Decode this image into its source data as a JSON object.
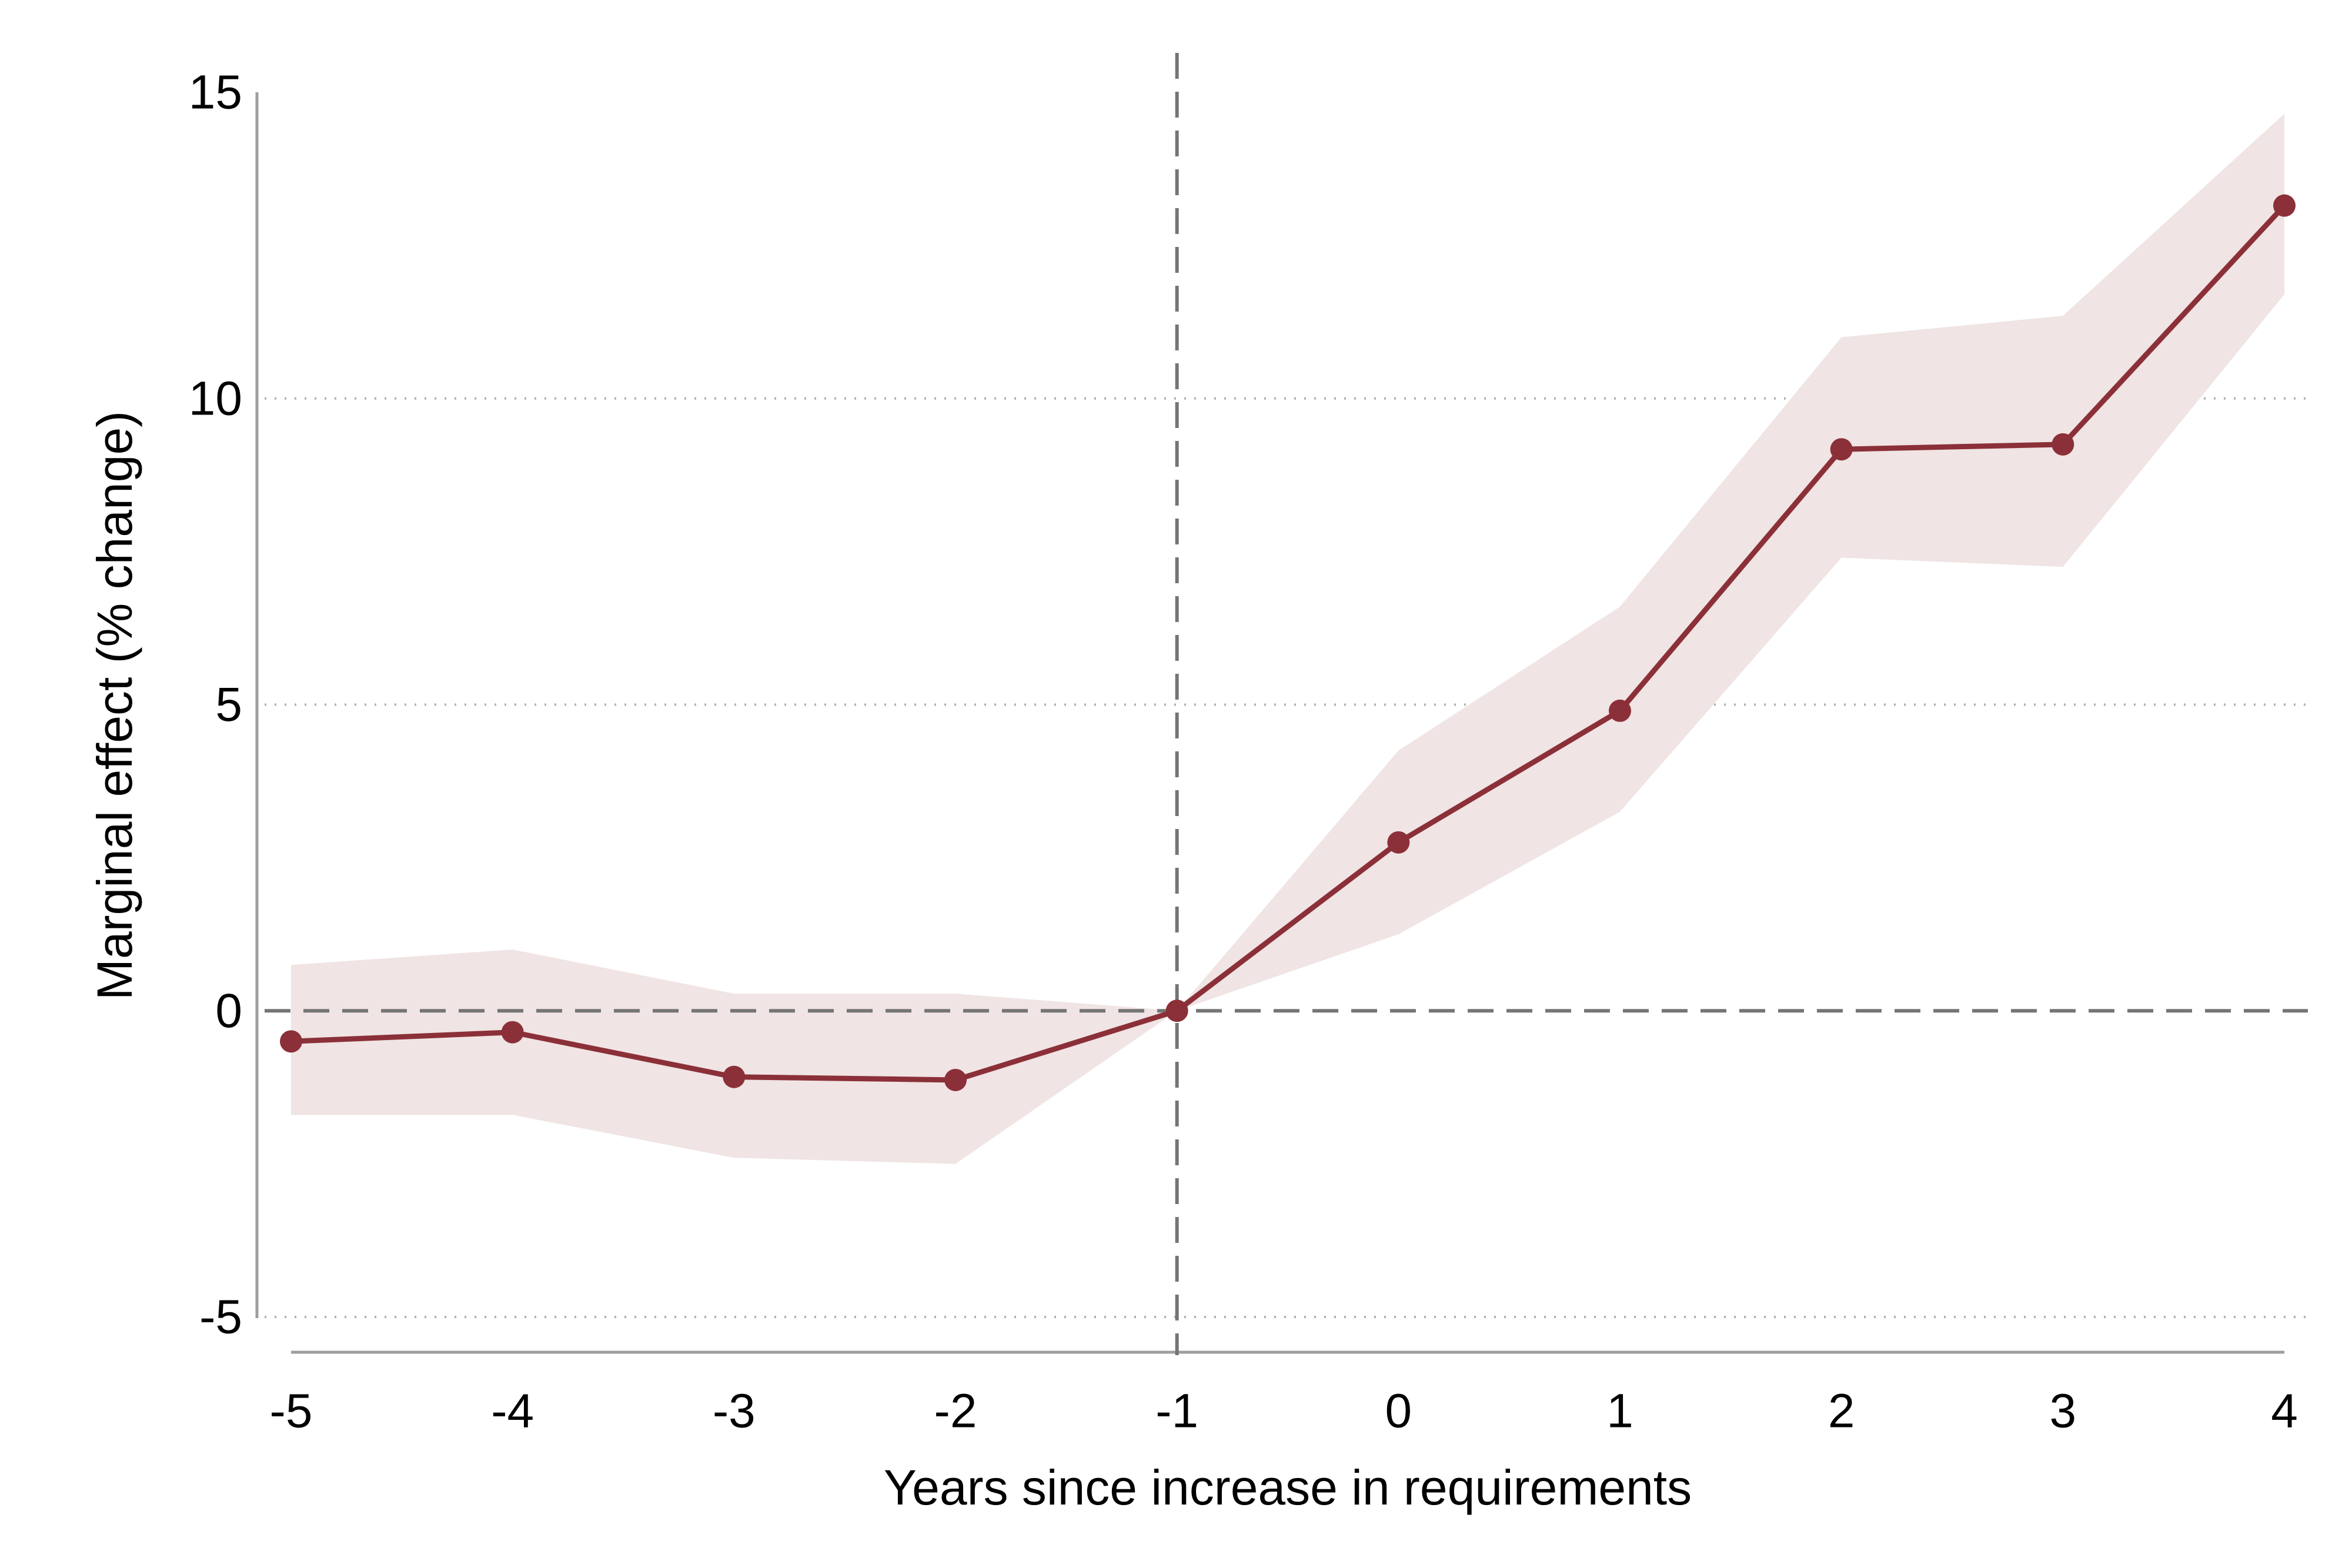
{
  "chart_data": {
    "type": "line",
    "title": "",
    "xlabel": "Years since increase in requirements",
    "ylabel": "Marginal effect (% change)",
    "x": [
      -5,
      -4,
      -3,
      -2,
      -1,
      0,
      1,
      2,
      3,
      4
    ],
    "x_tick_labels": [
      "-5",
      "-4",
      "-3",
      "-2",
      "-1",
      "0",
      "1",
      "2",
      "3",
      "4"
    ],
    "y_ticks": [
      15,
      10,
      5,
      0,
      -5
    ],
    "y_tick_labels": [
      "15",
      "10",
      "5",
      "0",
      "-5"
    ],
    "xlim": [
      -5,
      4
    ],
    "ylim": [
      -5,
      15
    ],
    "grid": "horizontal dotted",
    "series": [
      {
        "values": [
          -0.5,
          -0.35,
          -1.08,
          -1.13,
          0.0,
          2.75,
          4.9,
          9.17,
          9.25,
          13.15
        ],
        "ci_lower": [
          -1.7,
          -1.7,
          -2.4,
          -2.5,
          0.0,
          1.25,
          3.25,
          7.4,
          7.25,
          11.7
        ],
        "ci_upper": [
          0.75,
          1.0,
          0.28,
          0.28,
          0.0,
          4.25,
          6.6,
          11.0,
          11.35,
          14.65
        ]
      }
    ],
    "reference_lines": {
      "x": -1,
      "y": 0
    },
    "colors": {
      "line": "#8B3038",
      "band": "#F0E4E4",
      "reference": "#757575",
      "axis": "#9e9e9e",
      "grid": "#b0b0b0"
    }
  }
}
